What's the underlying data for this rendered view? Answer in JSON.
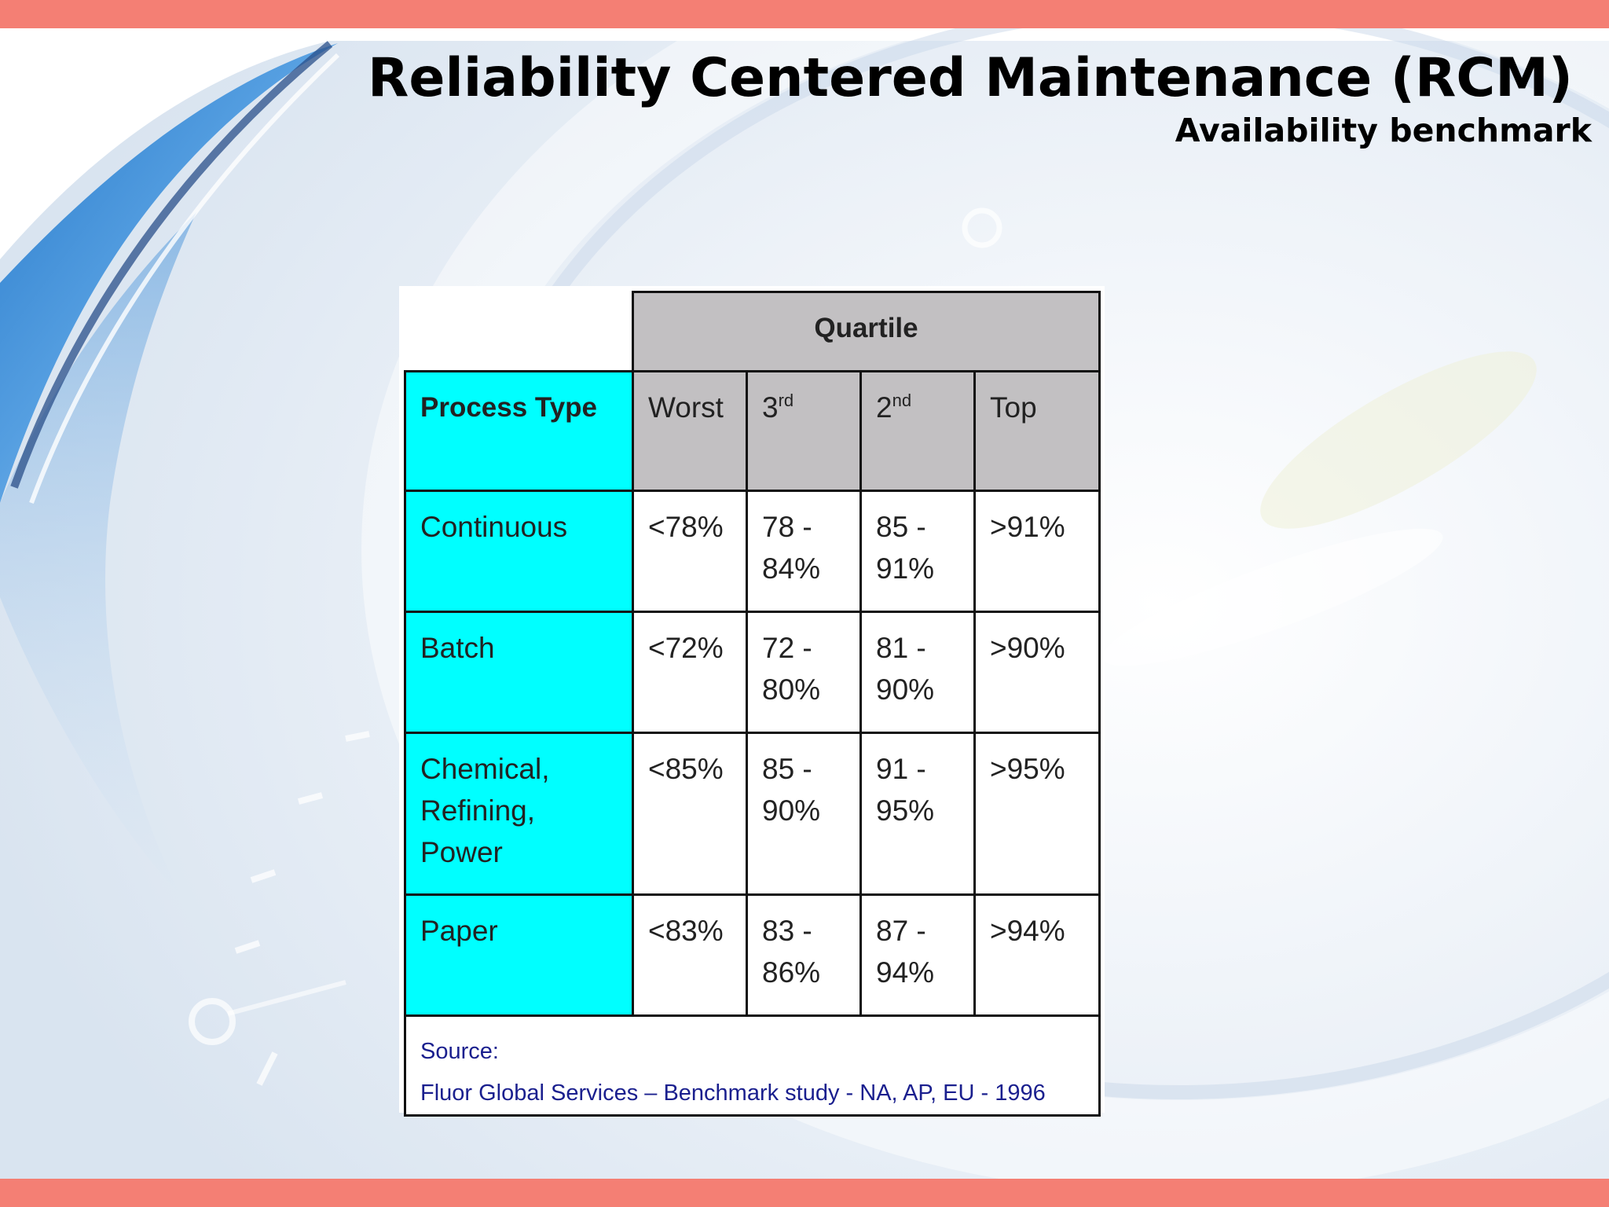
{
  "title": "Reliability Centered Maintenance (RCM)",
  "subtitle": "Availability benchmark",
  "table": {
    "group_header": "Quartile",
    "row_header": "Process Type",
    "columns": {
      "worst": "Worst",
      "third_num": "3",
      "third_sup": "rd",
      "second_num": "2",
      "second_sup": "nd",
      "top": "Top"
    },
    "rows": [
      {
        "type": "Continuous",
        "worst": "<78%",
        "third": "78 - 84%",
        "second": "85 - 91%",
        "top": ">91%"
      },
      {
        "type": "Batch",
        "worst": "<72%",
        "third": "72  - 80%",
        "second": "81 - 90%",
        "top": ">90%"
      },
      {
        "type": "Chemical, Refining, Power",
        "worst": "<85%",
        "third": "85 - 90%",
        "second": "91 - 95%",
        "top": ">95%"
      },
      {
        "type": "Paper",
        "worst": "<83%",
        "third": "83 - 86%",
        "second": "87 - 94%",
        "top": ">94%"
      }
    ],
    "source_label": "Source:",
    "source_text": "Fluor Global Services – Benchmark study - NA, AP, EU - 1996"
  },
  "colors": {
    "accent_bar": "#f47f74",
    "header_gray": "#c2c0c2",
    "process_cyan": "#00ffff",
    "source_blue": "#1a1f8e"
  }
}
